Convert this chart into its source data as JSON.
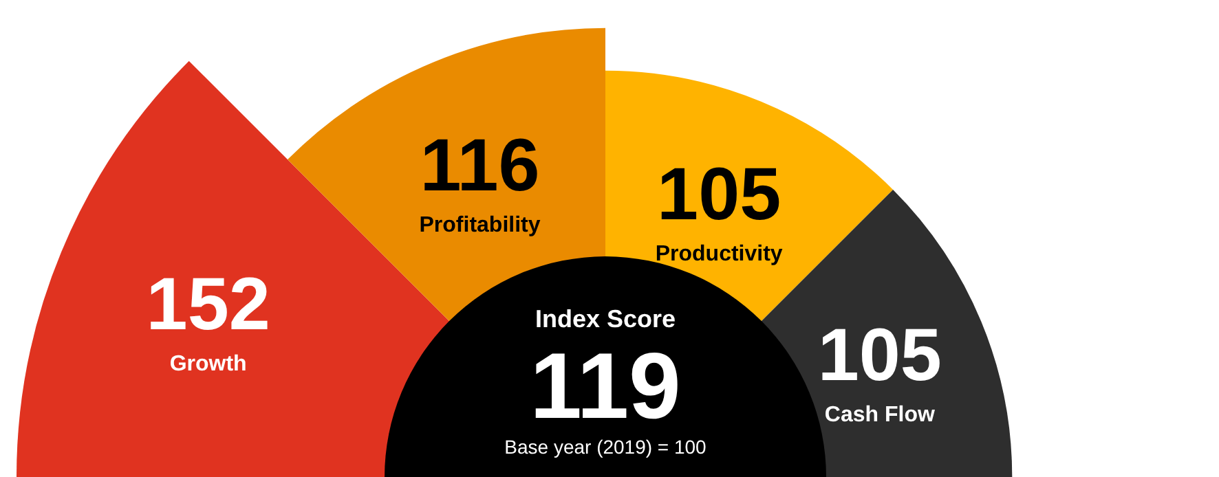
{
  "chart_data": {
    "type": "other",
    "title": "Index Score",
    "subtitle": "Base year (2019) = 100",
    "annotations": [
      "119"
    ],
    "categories": [
      "Growth",
      "Profitability",
      "Productivity",
      "Cash Flow"
    ],
    "values": [
      152,
      116,
      105,
      105
    ],
    "colors": [
      "#e03320",
      "#ea8b00",
      "#ffb300",
      "#2e2e2e"
    ],
    "data_labels": true,
    "legend": false
  }
}
